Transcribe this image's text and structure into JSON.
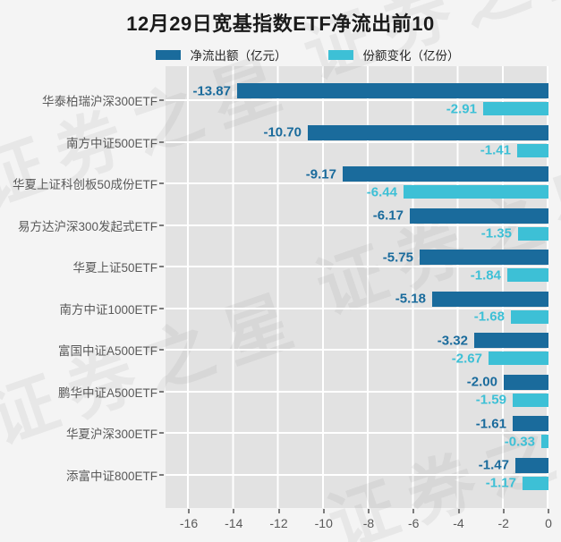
{
  "title": "12月29日宽基指数ETF净流出前10",
  "watermark": {
    "text": "证券之星"
  },
  "legend": [
    {
      "label": "净流出额（亿元）",
      "color": "#1a6b9c"
    },
    {
      "label": "份额变化（亿份）",
      "color": "#3dc0d6"
    }
  ],
  "colors": {
    "outflow_series": "#1a6b9c",
    "share_series": "#3dc0d6",
    "plot_background": "#e2e2e2",
    "page_background": "#f4f4f4",
    "gridline": "#ffffff",
    "axis_text": "#595959",
    "title_text": "#1b1b1b"
  },
  "chart_data": {
    "type": "bar",
    "orientation": "horizontal",
    "title": "12月29日宽基指数ETF净流出前10",
    "categories": [
      "华泰柏瑞沪深300ETF",
      "南方中证500ETF",
      "华夏上证科创板50成份ETF",
      "易方达沪深300发起式ETF",
      "华夏上证50ETF",
      "南方中证1000ETF",
      "富国中证A500ETF",
      "鹏华中证A500ETF",
      "华夏沪深300ETF",
      "添富中证800ETF"
    ],
    "series": [
      {
        "name": "净流出额（亿元）",
        "color": "#1a6b9c",
        "values": [
          -13.87,
          -10.7,
          -9.17,
          -6.17,
          -5.75,
          -5.18,
          -3.32,
          -2.0,
          -1.61,
          -1.47
        ]
      },
      {
        "name": "份额变化（亿份）",
        "color": "#3dc0d6",
        "values": [
          -2.91,
          -1.41,
          -6.44,
          -1.35,
          -1.84,
          -1.68,
          -2.67,
          -1.59,
          -0.33,
          -1.17
        ]
      }
    ],
    "x_ticks": [
      -16,
      -14,
      -12,
      -10,
      -8,
      -6,
      -4,
      -2,
      0
    ],
    "xlim": [
      -17.03,
      0
    ],
    "grid": true,
    "legend_position": "top-center",
    "value_labels": "outside-left, 2 decimals"
  }
}
